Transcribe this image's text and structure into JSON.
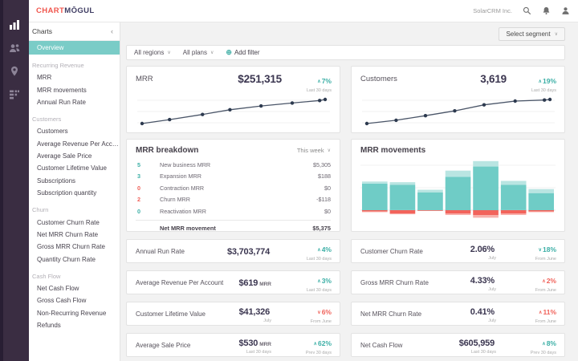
{
  "topbar": {
    "logo_part1": "CHART",
    "logo_part2": "MŌGUL",
    "account_name": "SolarCRM Inc.",
    "icons": [
      "search-icon",
      "bell-icon",
      "user-icon"
    ]
  },
  "rail": {
    "icons": [
      "charts-icon",
      "customers-icon",
      "geo-icon",
      "data-icon"
    ]
  },
  "sidebar": {
    "header": "Charts",
    "collapse_icon": "‹",
    "active_item": "Overview",
    "sections": [
      {
        "title": "Recurring Revenue",
        "items": [
          "MRR",
          "MRR movements",
          "Annual Run Rate"
        ]
      },
      {
        "title": "Customers",
        "items": [
          "Customers",
          "Average Revenue Per Acc…",
          "Average Sale Price",
          "Customer Lifetime Value",
          "Subscriptions",
          "Subscription quantity"
        ]
      },
      {
        "title": "Churn",
        "items": [
          "Customer Churn Rate",
          "Net MRR Churn Rate",
          "Gross MRR Churn Rate",
          "Quantity Churn Rate"
        ]
      },
      {
        "title": "Cash Flow",
        "items": [
          "Net Cash Flow",
          "Gross Cash Flow",
          "Non-Recurring Revenue",
          "Refunds"
        ]
      }
    ]
  },
  "segment_button": {
    "label": "Select segment",
    "chevron": "∨"
  },
  "filter_bar": {
    "region": "All regions",
    "plans": "All plans",
    "chevron": "∨",
    "plus_icon": "⊕",
    "add_filter": "Add filter"
  },
  "spark_cards": [
    {
      "title": "MRR",
      "value": "$251,315",
      "arrow": "∧",
      "change": "7%",
      "tone": "teal",
      "period": "Last 30 days"
    },
    {
      "title": "Customers",
      "value": "3,619",
      "arrow": "∧",
      "change": "19%",
      "tone": "teal",
      "period": "Last 30 days"
    }
  ],
  "breakdown": {
    "title": "MRR breakdown",
    "period": "This week",
    "chevron": "∨",
    "rows": [
      {
        "count": "5",
        "tone": "teal",
        "label": "New business MRR",
        "value": "$5,305"
      },
      {
        "count": "3",
        "tone": "teal",
        "label": "Expansion MRR",
        "value": "$188"
      },
      {
        "count": "0",
        "tone": "red",
        "label": "Contraction MRR",
        "value": "$0"
      },
      {
        "count": "2",
        "tone": "red",
        "label": "Churn MRR",
        "value": "-$118"
      },
      {
        "count": "0",
        "tone": "teal",
        "label": "Reactivation MRR",
        "value": "$0"
      }
    ],
    "total": {
      "label": "Net MRR movement",
      "value": "$5,375"
    }
  },
  "movements_card": {
    "title": "MRR movements"
  },
  "metrics": [
    {
      "label": "Annual Run Rate",
      "value": "$3,703,774",
      "suffix": "",
      "value_sub": "",
      "arrow": "∧",
      "change": "4%",
      "tone": "teal",
      "change_sub": "Last 30 days"
    },
    {
      "label": "Average Revenue Per Account",
      "value": "$619",
      "suffix": "MRR",
      "value_sub": "",
      "arrow": "∧",
      "change": "3%",
      "tone": "teal",
      "change_sub": "Last 30 days"
    },
    {
      "label": "Customer Lifetime Value",
      "value": "$41,326",
      "suffix": "",
      "value_sub": "July",
      "arrow": "∨",
      "change": "6%",
      "tone": "red",
      "change_sub": "From June"
    },
    {
      "label": "Average Sale Price",
      "value": "$530",
      "suffix": "MRR",
      "value_sub": "Last 30 days",
      "arrow": "∧",
      "change": "62%",
      "tone": "teal",
      "change_sub": "Prev 30 days"
    },
    {
      "label": "Customer Churn Rate",
      "value": "2.06%",
      "suffix": "",
      "value_sub": "July",
      "arrow": "∨",
      "change": "18%",
      "tone": "teal",
      "change_sub": "From June"
    },
    {
      "label": "Gross MRR Churn Rate",
      "value": "4.33%",
      "suffix": "",
      "value_sub": "July",
      "arrow": "∧",
      "change": "2%",
      "tone": "red",
      "change_sub": "From June"
    },
    {
      "label": "Net MRR Churn Rate",
      "value": "0.41%",
      "suffix": "",
      "value_sub": "July",
      "arrow": "∧",
      "change": "11%",
      "tone": "red",
      "change_sub": "From June"
    },
    {
      "label": "Net Cash Flow",
      "value": "$605,959",
      "suffix": "",
      "value_sub": "Last 30 days",
      "arrow": "∧",
      "change": "8%",
      "tone": "teal",
      "change_sub": "Prev 30 days"
    }
  ],
  "chart_data": [
    {
      "id": "mrr_sparkline",
      "type": "line",
      "title": "MRR",
      "x_percent": [
        0,
        15,
        33,
        48,
        65,
        82,
        97,
        100
      ],
      "values": [
        234900,
        237600,
        241100,
        244300,
        246900,
        248900,
        250600,
        251315
      ],
      "ylabel": "",
      "axis_labels_shown": false,
      "note": "unlabeled sparkline, values estimated from curve ending at displayed MRR $251,315 (+7% over 30 days)"
    },
    {
      "id": "customers_sparkline",
      "type": "line",
      "title": "Customers",
      "x_percent": [
        0,
        16,
        32,
        48,
        64,
        81,
        97,
        100
      ],
      "values": [
        3040,
        3120,
        3230,
        3345,
        3490,
        3580,
        3605,
        3619
      ],
      "ylabel": "",
      "axis_labels_shown": false,
      "note": "unlabeled sparkline, values estimated from curve ending at displayed 3,619 customers (+19% over 30 days)"
    },
    {
      "id": "mrr_movements",
      "type": "bar",
      "stacked": true,
      "title": "MRR movements",
      "categories": [
        "1",
        "2",
        "3",
        "4",
        "5",
        "6",
        "7"
      ],
      "series": [
        {
          "name": "new_business",
          "color": "#6fccc6",
          "values": [
            39,
            37,
            26,
            49,
            64,
            37,
            25
          ]
        },
        {
          "name": "expansion",
          "color": "#b9e5e2",
          "values": [
            3,
            4,
            4,
            9,
            8,
            6,
            6
          ]
        },
        {
          "name": "churn",
          "color": "#f2635b",
          "values": [
            -2,
            -5,
            -1,
            -5,
            -7,
            -5,
            -2
          ]
        },
        {
          "name": "contraction",
          "color": "#f8b0ab",
          "values": [
            -1,
            -1,
            0,
            -2,
            -4,
            -2,
            -1
          ]
        }
      ],
      "units": "relative (axis unlabeled)",
      "grid": true,
      "legend_shown": false
    }
  ],
  "colors": {
    "teal_accent": "#3cafa6",
    "red_accent": "#f0625a",
    "rail_bg": "#3a2d42",
    "active_item_bg": "#7accc7",
    "logo_red": "#f0564d",
    "logo_dark": "#3f3d63",
    "line": "#4a5568",
    "dot": "#2d3a4f",
    "bar_teal": "#6fccc6",
    "bar_teal_light": "#b9e5e2",
    "bar_red": "#f2635b",
    "bar_red_light": "#f8b0ab",
    "value_text": "#3b3650"
  }
}
